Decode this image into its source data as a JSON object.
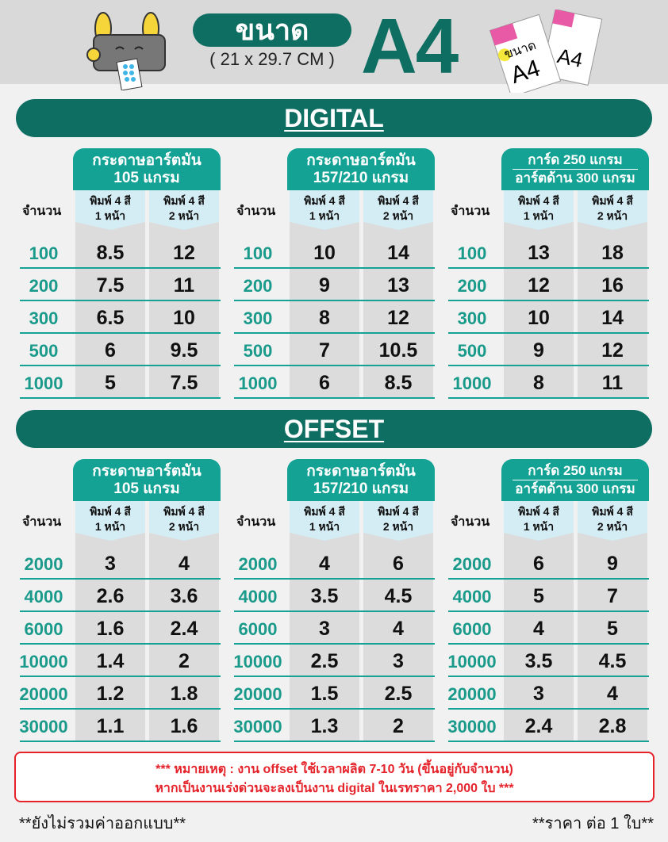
{
  "header": {
    "size_label": "ขนาด",
    "dimensions": "( 21 x 29.7 CM )",
    "paper_size": "A4",
    "paper_icon_text": "ขนาด A4"
  },
  "colors": {
    "banner": "#0f6e62",
    "tab": "#14a295",
    "qty": "#1a9a8a",
    "note": "#e5232b"
  },
  "sections": [
    {
      "title": "DIGITAL",
      "qty_label": "จำนวน",
      "quantities": [
        "100",
        "200",
        "300",
        "500",
        "1000"
      ],
      "groups": [
        {
          "title": [
            "กระดาษอาร์ตมัน",
            "105 แกรม"
          ],
          "cols": [
            [
              "พิมพ์ 4 สี",
              "1 หน้า"
            ],
            [
              "พิมพ์ 4 สี",
              "2 หน้า"
            ]
          ],
          "prices": [
            [
              "8.5",
              "12"
            ],
            [
              "7.5",
              "11"
            ],
            [
              "6.5",
              "10"
            ],
            [
              "6",
              "9.5"
            ],
            [
              "5",
              "7.5"
            ]
          ]
        },
        {
          "title": [
            "กระดาษอาร์ตมัน",
            "157/210 แกรม"
          ],
          "cols": [
            [
              "พิมพ์ 4 สี",
              "1 หน้า"
            ],
            [
              "พิมพ์ 4 สี",
              "2 หน้า"
            ]
          ],
          "prices": [
            [
              "10",
              "14"
            ],
            [
              "9",
              "13"
            ],
            [
              "8",
              "12"
            ],
            [
              "7",
              "10.5"
            ],
            [
              "6",
              "8.5"
            ]
          ]
        },
        {
          "title": [
            "การ์ด 250 แกรม",
            "อาร์ตด้าน 300 แกรม"
          ],
          "cols": [
            [
              "พิมพ์ 4 สี",
              "1 หน้า"
            ],
            [
              "พิมพ์ 4 สี",
              "2 หน้า"
            ]
          ],
          "prices": [
            [
              "13",
              "18"
            ],
            [
              "12",
              "16"
            ],
            [
              "10",
              "14"
            ],
            [
              "9",
              "12"
            ],
            [
              "8",
              "11"
            ]
          ]
        }
      ]
    },
    {
      "title": "OFFSET",
      "qty_label": "จำนวน",
      "quantities": [
        "2000",
        "4000",
        "6000",
        "10000",
        "20000",
        "30000"
      ],
      "groups": [
        {
          "title": [
            "กระดาษอาร์ตมัน",
            "105 แกรม"
          ],
          "cols": [
            [
              "พิมพ์ 4 สี",
              "1 หน้า"
            ],
            [
              "พิมพ์ 4 สี",
              "2 หน้า"
            ]
          ],
          "prices": [
            [
              "3",
              "4"
            ],
            [
              "2.6",
              "3.6"
            ],
            [
              "1.6",
              "2.4"
            ],
            [
              "1.4",
              "2"
            ],
            [
              "1.2",
              "1.8"
            ],
            [
              "1.1",
              "1.6"
            ]
          ]
        },
        {
          "title": [
            "กระดาษอาร์ตมัน",
            "157/210 แกรม"
          ],
          "cols": [
            [
              "พิมพ์ 4 สี",
              "1 หน้า"
            ],
            [
              "พิมพ์ 4 สี",
              "2 หน้า"
            ]
          ],
          "prices": [
            [
              "4",
              "6"
            ],
            [
              "3.5",
              "4.5"
            ],
            [
              "3",
              "4"
            ],
            [
              "2.5",
              "3"
            ],
            [
              "1.5",
              "2.5"
            ],
            [
              "1.3",
              "2"
            ]
          ]
        },
        {
          "title": [
            "การ์ด 250 แกรม",
            "อาร์ตด้าน 300 แกรม"
          ],
          "cols": [
            [
              "พิมพ์ 4 สี",
              "1 หน้า"
            ],
            [
              "พิมพ์ 4 สี",
              "2 หน้า"
            ]
          ],
          "prices": [
            [
              "6",
              "9"
            ],
            [
              "5",
              "7"
            ],
            [
              "4",
              "5"
            ],
            [
              "3.5",
              "4.5"
            ],
            [
              "3",
              "4"
            ],
            [
              "2.4",
              "2.8"
            ]
          ]
        }
      ]
    }
  ],
  "note": {
    "line1": "*** หมายเหตุ : งาน offset  ใช้เวลาผลิต 7-10 วัน (ขึ้นอยู่กับจำนวน)",
    "line2": "หากเป็นงานเร่งด่วนจะลงเป็นงาน digital ในเรทราคา 2,000 ใบ ***"
  },
  "footer": {
    "left": "**ยังไม่รวมค่าออกแบบ**",
    "right": "**ราคา ต่อ 1 ใบ**"
  }
}
